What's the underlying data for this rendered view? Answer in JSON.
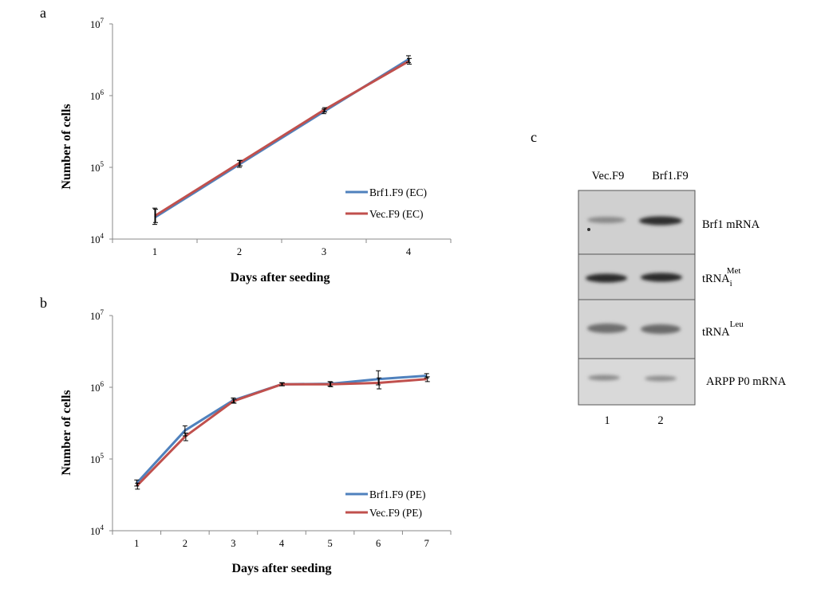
{
  "panels": {
    "a": "a",
    "b": "b",
    "c": "c"
  },
  "colors": {
    "brf1": "#4f81bd",
    "vec": "#c0504d",
    "axis": "#888888"
  },
  "chart_data": [
    {
      "panel": "a",
      "type": "line",
      "scale": "log",
      "xlabel": "Days after seeding",
      "ylabel": "Number of cells",
      "x": [
        1,
        2,
        3,
        4
      ],
      "ylim": [
        10000,
        10000000
      ],
      "yticks": [
        {
          "base": "10",
          "exp": "4"
        },
        {
          "base": "10",
          "exp": "5"
        },
        {
          "base": "10",
          "exp": "6"
        },
        {
          "base": "10",
          "exp": "7"
        }
      ],
      "legend_position": "right",
      "series": [
        {
          "name": "Brf1.F9 (EC)",
          "values": [
            20000,
            110000,
            600000,
            3200000
          ],
          "errors": [
            [
              16000,
              27000
            ],
            [
              100000,
              125000
            ],
            [
              560000,
              650000
            ],
            [
              2900000,
              3600000
            ]
          ]
        },
        {
          "name": "Vec.F9 (EC)",
          "values": [
            21000,
            115000,
            630000,
            3000000
          ],
          "errors": [
            [
              17000,
              26000
            ],
            [
              105000,
              125000
            ],
            [
              590000,
              680000
            ],
            [
              2750000,
              3300000
            ]
          ]
        }
      ]
    },
    {
      "panel": "b",
      "type": "line",
      "scale": "log",
      "xlabel": "Days after seeding",
      "ylabel": "Number of cells",
      "x": [
        1,
        2,
        3,
        4,
        5,
        6,
        7
      ],
      "ylim": [
        10000,
        10000000
      ],
      "yticks": [
        {
          "base": "10",
          "exp": "4"
        },
        {
          "base": "10",
          "exp": "5"
        },
        {
          "base": "10",
          "exp": "6"
        },
        {
          "base": "10",
          "exp": "7"
        }
      ],
      "legend_position": "bottom-right",
      "series": [
        {
          "name": "Brf1.F9 (PE)",
          "values": [
            46000,
            250000,
            660000,
            1100000,
            1120000,
            1300000,
            1450000
          ],
          "errors": [
            [
              42000,
              51000
            ],
            [
              210000,
              290000
            ],
            [
              610000,
              710000
            ],
            [
              1050000,
              1160000
            ],
            [
              1040000,
              1200000
            ],
            [
              1080000,
              1700000
            ],
            [
              1350000,
              1550000
            ]
          ]
        },
        {
          "name": "Vec.F9 (PE)",
          "values": [
            42000,
            205000,
            640000,
            1100000,
            1100000,
            1150000,
            1300000
          ],
          "errors": [
            [
              38000,
              46000
            ],
            [
              180000,
              230000
            ],
            [
              600000,
              680000
            ],
            [
              1050000,
              1150000
            ],
            [
              1020000,
              1180000
            ],
            [
              950000,
              1350000
            ],
            [
              1200000,
              1400000
            ]
          ]
        }
      ]
    }
  ],
  "blot": {
    "columns": [
      "Vec.F9",
      "Brf1.F9"
    ],
    "lanes": [
      "1",
      "2"
    ],
    "rows": [
      {
        "label": "Brf1 mRNA"
      },
      {
        "label_base": "tRNA",
        "label_sub": "i",
        "label_sup": "Met"
      },
      {
        "label_base": "tRNA",
        "label_sup": "Leu"
      },
      {
        "label": "ARPP P0 mRNA"
      }
    ]
  }
}
